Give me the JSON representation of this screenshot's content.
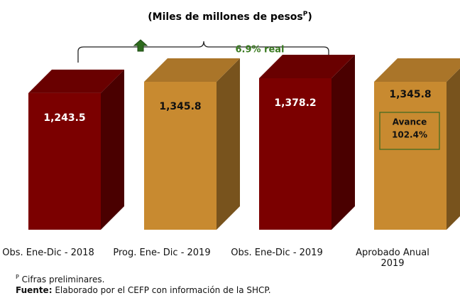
{
  "chart_data": {
    "type": "bar3d",
    "title_parts": [
      "(Miles de millones de pesos",
      "P",
      ")"
    ],
    "categories": [
      "Obs. Ene-Dic - 2018",
      "Prog. Ene- Dic - 2019",
      "Obs. Ene-Dic - 2019",
      "Aprobado Anual 2019"
    ],
    "values": [
      1243.5,
      1345.8,
      1378.2,
      1345.8
    ],
    "value_labels": [
      "1,243.5",
      "1,345.8",
      "1,378.2",
      "1,345.8"
    ],
    "colors": [
      "#7b0000",
      "#c88a30",
      "#7b0000",
      "#c88a30"
    ],
    "growth_annotation": "6.9% real",
    "avance_label": "Avance",
    "avance_value": "102.4%",
    "note_marker": "P",
    "note": "Cifras preliminares.",
    "source_label": "Fuente:",
    "source": "Elaborado por el CEFP con información de la SHCP."
  }
}
